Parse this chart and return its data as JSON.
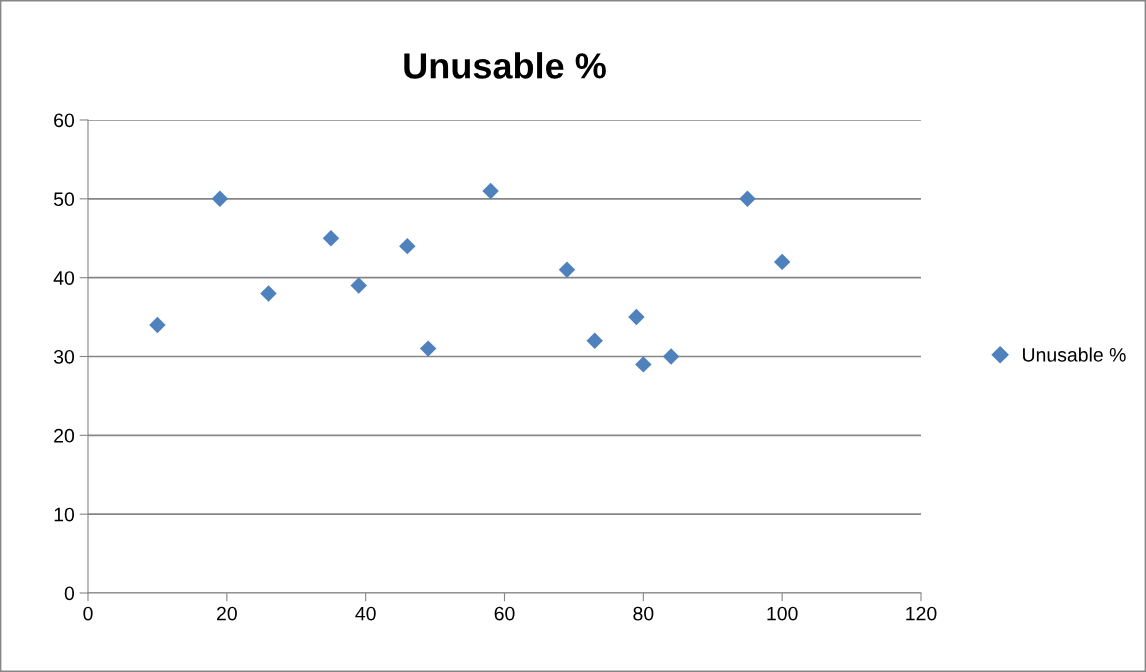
{
  "chart_data": {
    "type": "scatter",
    "title": "Unusable %",
    "x": [
      10,
      19,
      26,
      35,
      39,
      46,
      49,
      58,
      69,
      73,
      79,
      80,
      84,
      95,
      100
    ],
    "series": [
      {
        "name": "Unusable %",
        "color": "#4f81bd",
        "values": [
          34,
          50,
          38,
          45,
          39,
          44,
          31,
          51,
          41,
          32,
          35,
          29,
          30,
          50,
          42
        ]
      }
    ],
    "xlim": [
      0,
      120
    ],
    "xticks": [
      0,
      20,
      40,
      60,
      80,
      100,
      120
    ],
    "ylim": [
      0,
      60
    ],
    "yticks": [
      0,
      10,
      20,
      30,
      40,
      50,
      60
    ],
    "grid": "y",
    "legend": "right",
    "marker": "diamond"
  }
}
